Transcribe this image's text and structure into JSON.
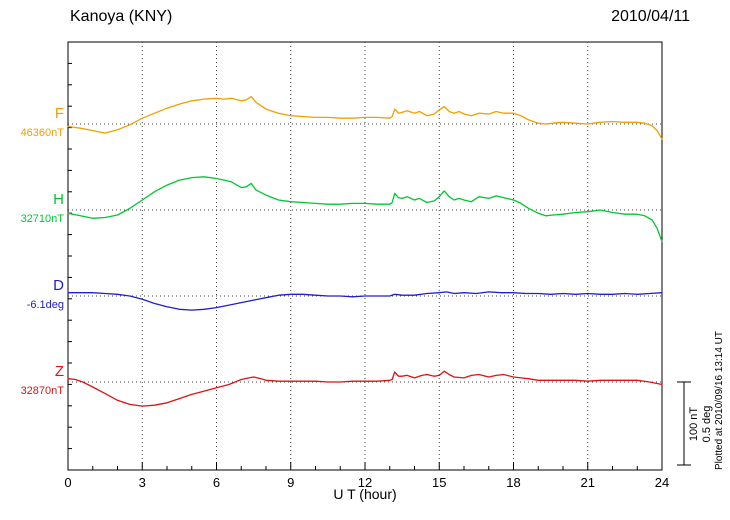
{
  "chart_data": {
    "type": "line",
    "title": "Kanoya (KNY)",
    "date": "2010/04/11",
    "xlabel": "U T (hour)",
    "x_range": [
      0,
      24
    ],
    "x_major_ticks": [
      0,
      3,
      6,
      9,
      12,
      15,
      18,
      21,
      24
    ],
    "x_minor_step": 1,
    "grid": "dotted vertical lines at 3-hour intervals; dotted horizontal baseline per trace",
    "legend_position": "left-of-axis trace labels",
    "footnote": "Plotted at 2010/09/16 13:14 UT",
    "scale_bar": {
      "nT_label": "100 nT",
      "deg_label": "0.5 deg",
      "nT_per_div": 100,
      "deg_per_div": 0.5
    },
    "series": [
      {
        "name": "F",
        "baseline_label": "46360nT",
        "baseline_value": 46360,
        "unit": "nT",
        "color": "#f0a000",
        "offsets": [
          [
            0,
            -3
          ],
          [
            0.5,
            -5
          ],
          [
            1,
            -8
          ],
          [
            1.5,
            -11
          ],
          [
            2,
            -7
          ],
          [
            2.5,
            -1
          ],
          [
            3,
            7
          ],
          [
            3.5,
            13
          ],
          [
            4,
            19
          ],
          [
            4.5,
            24
          ],
          [
            5,
            28
          ],
          [
            5.5,
            30
          ],
          [
            6,
            31
          ],
          [
            6.3,
            30
          ],
          [
            6.6,
            31
          ],
          [
            7,
            28
          ],
          [
            7.2,
            29
          ],
          [
            7.4,
            33
          ],
          [
            7.6,
            26
          ],
          [
            8,
            18
          ],
          [
            8.5,
            13
          ],
          [
            9,
            10
          ],
          [
            9.5,
            9
          ],
          [
            10,
            8
          ],
          [
            10.5,
            8
          ],
          [
            11,
            7
          ],
          [
            11.5,
            7
          ],
          [
            12,
            8
          ],
          [
            12.5,
            8
          ],
          [
            13,
            7
          ],
          [
            13.1,
            9
          ],
          [
            13.2,
            18
          ],
          [
            13.35,
            13
          ],
          [
            13.5,
            14
          ],
          [
            13.7,
            16
          ],
          [
            14,
            13
          ],
          [
            14.2,
            15
          ],
          [
            14.5,
            10
          ],
          [
            14.8,
            12
          ],
          [
            15,
            17
          ],
          [
            15.2,
            21
          ],
          [
            15.4,
            15
          ],
          [
            15.6,
            13
          ],
          [
            15.8,
            15
          ],
          [
            16,
            12
          ],
          [
            16.3,
            10
          ],
          [
            16.6,
            13
          ],
          [
            17,
            12
          ],
          [
            17.3,
            15
          ],
          [
            17.6,
            13
          ],
          [
            18,
            13
          ],
          [
            18.3,
            10
          ],
          [
            18.6,
            5
          ],
          [
            19,
            1
          ],
          [
            19.3,
            0
          ],
          [
            19.6,
            1
          ],
          [
            20,
            2
          ],
          [
            20.5,
            1
          ],
          [
            21,
            0
          ],
          [
            21.5,
            2
          ],
          [
            22,
            3
          ],
          [
            22.5,
            2
          ],
          [
            23,
            2
          ],
          [
            23.3,
            1
          ],
          [
            23.6,
            -2
          ],
          [
            23.8,
            -8
          ],
          [
            24,
            -18
          ]
        ]
      },
      {
        "name": "H",
        "baseline_label": "32710nT",
        "baseline_value": 32710,
        "unit": "nT",
        "color": "#00c832",
        "offsets": [
          [
            0,
            -4
          ],
          [
            0.5,
            -7
          ],
          [
            1,
            -10
          ],
          [
            1.5,
            -9
          ],
          [
            2,
            -6
          ],
          [
            2.5,
            2
          ],
          [
            3,
            12
          ],
          [
            3.5,
            22
          ],
          [
            4,
            30
          ],
          [
            4.5,
            36
          ],
          [
            5,
            39
          ],
          [
            5.5,
            40
          ],
          [
            6,
            38
          ],
          [
            6.3,
            36
          ],
          [
            6.6,
            34
          ],
          [
            7,
            27
          ],
          [
            7.2,
            28
          ],
          [
            7.4,
            32
          ],
          [
            7.6,
            24
          ],
          [
            8,
            18
          ],
          [
            8.5,
            12
          ],
          [
            9,
            10
          ],
          [
            9.5,
            9
          ],
          [
            10,
            8
          ],
          [
            10.5,
            7
          ],
          [
            11,
            7
          ],
          [
            11.5,
            8
          ],
          [
            12,
            8
          ],
          [
            12.5,
            7
          ],
          [
            13,
            7
          ],
          [
            13.1,
            9
          ],
          [
            13.2,
            20
          ],
          [
            13.35,
            15
          ],
          [
            13.5,
            14
          ],
          [
            13.7,
            16
          ],
          [
            14,
            12
          ],
          [
            14.2,
            14
          ],
          [
            14.5,
            9
          ],
          [
            14.8,
            11
          ],
          [
            15,
            16
          ],
          [
            15.2,
            23
          ],
          [
            15.4,
            16
          ],
          [
            15.6,
            12
          ],
          [
            15.8,
            14
          ],
          [
            16,
            12
          ],
          [
            16.3,
            10
          ],
          [
            16.6,
            16
          ],
          [
            17,
            14
          ],
          [
            17.3,
            17
          ],
          [
            17.6,
            15
          ],
          [
            18,
            12
          ],
          [
            18.3,
            8
          ],
          [
            18.6,
            2
          ],
          [
            19,
            -4
          ],
          [
            19.3,
            -7
          ],
          [
            19.6,
            -6
          ],
          [
            20,
            -5
          ],
          [
            20.5,
            -3
          ],
          [
            21,
            -2
          ],
          [
            21.5,
            0
          ],
          [
            22,
            -3
          ],
          [
            22.5,
            -5
          ],
          [
            23,
            -5
          ],
          [
            23.3,
            -7
          ],
          [
            23.6,
            -12
          ],
          [
            23.8,
            -22
          ],
          [
            24,
            -38
          ]
        ]
      },
      {
        "name": "D",
        "baseline_label": "-6.1deg",
        "baseline_value": -6.1,
        "unit": "deg",
        "color": "#2020c8",
        "offsets": [
          [
            0,
            0.02
          ],
          [
            0.5,
            0.02
          ],
          [
            1,
            0.02
          ],
          [
            1.5,
            0.015
          ],
          [
            2,
            0.01
          ],
          [
            2.5,
            0
          ],
          [
            3,
            -0.02
          ],
          [
            3.5,
            -0.045
          ],
          [
            4,
            -0.065
          ],
          [
            4.5,
            -0.08
          ],
          [
            5,
            -0.085
          ],
          [
            5.5,
            -0.08
          ],
          [
            6,
            -0.07
          ],
          [
            6.5,
            -0.055
          ],
          [
            7,
            -0.04
          ],
          [
            7.5,
            -0.025
          ],
          [
            8,
            -0.01
          ],
          [
            8.5,
            0.005
          ],
          [
            9,
            0.01
          ],
          [
            9.5,
            0.01
          ],
          [
            10,
            0.005
          ],
          [
            10.5,
            0
          ],
          [
            11,
            0
          ],
          [
            11.5,
            -0.005
          ],
          [
            12,
            0
          ],
          [
            12.5,
            0
          ],
          [
            13,
            0
          ],
          [
            13.2,
            0.01
          ],
          [
            13.5,
            0.005
          ],
          [
            14,
            0.005
          ],
          [
            14.5,
            0.015
          ],
          [
            15,
            0.02
          ],
          [
            15.3,
            0.025
          ],
          [
            15.6,
            0.015
          ],
          [
            16,
            0.02
          ],
          [
            16.5,
            0.015
          ],
          [
            17,
            0.025
          ],
          [
            17.5,
            0.02
          ],
          [
            18,
            0.02
          ],
          [
            18.5,
            0.015
          ],
          [
            19,
            0.015
          ],
          [
            19.5,
            0.01
          ],
          [
            20,
            0.015
          ],
          [
            20.5,
            0.01
          ],
          [
            21,
            0.015
          ],
          [
            21.5,
            0.01
          ],
          [
            22,
            0.01
          ],
          [
            22.5,
            0.015
          ],
          [
            23,
            0.01
          ],
          [
            23.5,
            0.015
          ],
          [
            24,
            0.02
          ]
        ]
      },
      {
        "name": "Z",
        "baseline_label": "32870nT",
        "baseline_value": 32870,
        "unit": "nT",
        "color": "#dc1414",
        "offsets": [
          [
            0,
            4
          ],
          [
            0.3,
            3
          ],
          [
            0.6,
            0
          ],
          [
            1,
            -6
          ],
          [
            1.5,
            -14
          ],
          [
            2,
            -22
          ],
          [
            2.5,
            -27
          ],
          [
            3,
            -29
          ],
          [
            3.5,
            -28
          ],
          [
            4,
            -25
          ],
          [
            4.5,
            -20
          ],
          [
            5,
            -15
          ],
          [
            5.5,
            -11
          ],
          [
            6,
            -7
          ],
          [
            6.5,
            -3
          ],
          [
            7,
            3
          ],
          [
            7.3,
            5
          ],
          [
            7.5,
            6
          ],
          [
            7.8,
            4
          ],
          [
            8,
            2
          ],
          [
            8.5,
            1
          ],
          [
            9,
            1
          ],
          [
            9.5,
            1
          ],
          [
            10,
            1
          ],
          [
            10.5,
            0
          ],
          [
            11,
            0
          ],
          [
            11.5,
            1
          ],
          [
            12,
            1
          ],
          [
            12.5,
            1
          ],
          [
            13,
            2
          ],
          [
            13.1,
            3
          ],
          [
            13.2,
            12
          ],
          [
            13.35,
            7
          ],
          [
            13.5,
            7
          ],
          [
            13.7,
            8
          ],
          [
            14,
            5
          ],
          [
            14.3,
            8
          ],
          [
            14.5,
            9
          ],
          [
            14.8,
            7
          ],
          [
            15,
            8
          ],
          [
            15.2,
            13
          ],
          [
            15.4,
            9
          ],
          [
            15.6,
            6
          ],
          [
            16,
            5
          ],
          [
            16.3,
            8
          ],
          [
            16.6,
            9
          ],
          [
            17,
            6
          ],
          [
            17.3,
            8
          ],
          [
            17.6,
            9
          ],
          [
            18,
            6
          ],
          [
            18.3,
            5
          ],
          [
            18.6,
            4
          ],
          [
            19,
            2
          ],
          [
            19.5,
            2
          ],
          [
            20,
            2
          ],
          [
            20.5,
            2
          ],
          [
            21,
            1
          ],
          [
            21.5,
            2
          ],
          [
            22,
            2
          ],
          [
            22.5,
            2
          ],
          [
            23,
            2
          ],
          [
            23.5,
            0
          ],
          [
            24,
            -3
          ]
        ]
      }
    ]
  }
}
